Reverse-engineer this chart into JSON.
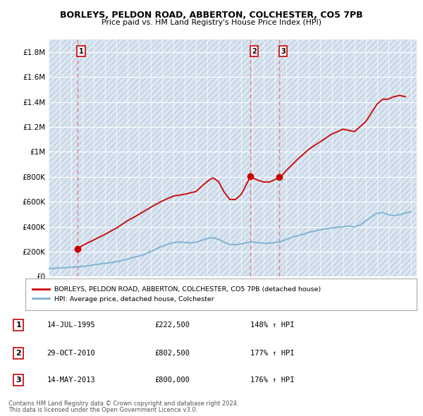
{
  "title": "BORLEYS, PELDON ROAD, ABBERTON, COLCHESTER, CO5 7PB",
  "subtitle": "Price paid vs. HM Land Registry's House Price Index (HPI)",
  "ylim": [
    0,
    1900000
  ],
  "xlim_start": 1993.0,
  "xlim_end": 2025.5,
  "yticks": [
    0,
    200000,
    400000,
    600000,
    800000,
    1000000,
    1200000,
    1400000,
    1600000,
    1800000
  ],
  "ytick_labels": [
    "£0",
    "£200K",
    "£400K",
    "£600K",
    "£800K",
    "£1M",
    "£1.2M",
    "£1.4M",
    "£1.6M",
    "£1.8M"
  ],
  "background_color": "#ffffff",
  "plot_bg_color": "#dce6f1",
  "transactions": [
    {
      "num": 1,
      "date": "14-JUL-1995",
      "year": 1995.54,
      "price": 222500,
      "label": "1",
      "pct": "148%",
      "arrow": "↑"
    },
    {
      "num": 2,
      "date": "29-OCT-2010",
      "year": 2010.83,
      "price": 802500,
      "label": "2",
      "pct": "177%",
      "arrow": "↑"
    },
    {
      "num": 3,
      "date": "14-MAY-2013",
      "year": 2013.37,
      "price": 800000,
      "label": "3",
      "pct": "176%",
      "arrow": "↑"
    }
  ],
  "red_line_color": "#cc0000",
  "blue_line_color": "#7bafd4",
  "dashed_line_color": "#e87070",
  "legend_line1": "BORLEYS, PELDON ROAD, ABBERTON, COLCHESTER, CO5 7PB (detached house)",
  "legend_line2": "HPI: Average price, detached house, Colchester",
  "footer1": "Contains HM Land Registry data © Crown copyright and database right 2024.",
  "footer2": "This data is licensed under the Open Government Licence v3.0.",
  "hpi_data": {
    "years": [
      1993.0,
      1993.5,
      1994.0,
      1994.5,
      1995.0,
      1995.5,
      1996.0,
      1996.5,
      1997.0,
      1997.5,
      1998.0,
      1998.5,
      1999.0,
      1999.5,
      2000.0,
      2000.5,
      2001.0,
      2001.5,
      2002.0,
      2002.5,
      2003.0,
      2003.5,
      2004.0,
      2004.5,
      2005.0,
      2005.5,
      2006.0,
      2006.5,
      2007.0,
      2007.5,
      2008.0,
      2008.5,
      2009.0,
      2009.5,
      2010.0,
      2010.5,
      2011.0,
      2011.5,
      2012.0,
      2012.5,
      2013.0,
      2013.5,
      2014.0,
      2014.5,
      2015.0,
      2015.5,
      2016.0,
      2016.5,
      2017.0,
      2017.5,
      2018.0,
      2018.5,
      2019.0,
      2019.5,
      2020.0,
      2020.5,
      2021.0,
      2021.5,
      2022.0,
      2022.5,
      2023.0,
      2023.5,
      2024.0,
      2024.5,
      2025.0
    ],
    "values": [
      65000,
      67000,
      70000,
      72000,
      75000,
      78000,
      82000,
      87000,
      95000,
      101000,
      107000,
      112000,
      120000,
      130000,
      142000,
      155000,
      165000,
      180000,
      200000,
      222000,
      242000,
      260000,
      272000,
      278000,
      274000,
      270000,
      276000,
      290000,
      305000,
      312000,
      300000,
      276000,
      258000,
      256000,
      262000,
      272000,
      278000,
      272000,
      268000,
      268000,
      274000,
      280000,
      298000,
      316000,
      328000,
      340000,
      356000,
      366000,
      376000,
      384000,
      390000,
      396000,
      400000,
      406000,
      398000,
      414000,
      448000,
      478000,
      508000,
      514000,
      496000,
      490000,
      496000,
      510000,
      520000
    ]
  },
  "price_line_data": {
    "years": [
      1995.54,
      1996.0,
      1997.0,
      1998.0,
      1999.0,
      2000.0,
      2001.0,
      2002.0,
      2003.0,
      2004.0,
      2005.0,
      2006.0,
      2007.0,
      2007.5,
      2008.0,
      2008.5,
      2009.0,
      2009.5,
      2010.0,
      2010.83,
      2011.0,
      2011.5,
      2012.0,
      2012.5,
      2013.0,
      2013.37,
      2013.5,
      2014.0,
      2015.0,
      2016.0,
      2017.0,
      2018.0,
      2019.0,
      2020.0,
      2021.0,
      2022.0,
      2022.5,
      2023.0,
      2023.5,
      2024.0,
      2024.5
    ],
    "values": [
      222500,
      250000,
      295000,
      340000,
      390000,
      450000,
      500000,
      555000,
      605000,
      645000,
      660000,
      682000,
      762000,
      792000,
      762000,
      678000,
      618000,
      618000,
      658000,
      802500,
      792000,
      772000,
      758000,
      758000,
      778000,
      800000,
      800000,
      852000,
      942000,
      1022000,
      1082000,
      1142000,
      1182000,
      1162000,
      1242000,
      1382000,
      1422000,
      1422000,
      1442000,
      1452000,
      1442000
    ]
  }
}
